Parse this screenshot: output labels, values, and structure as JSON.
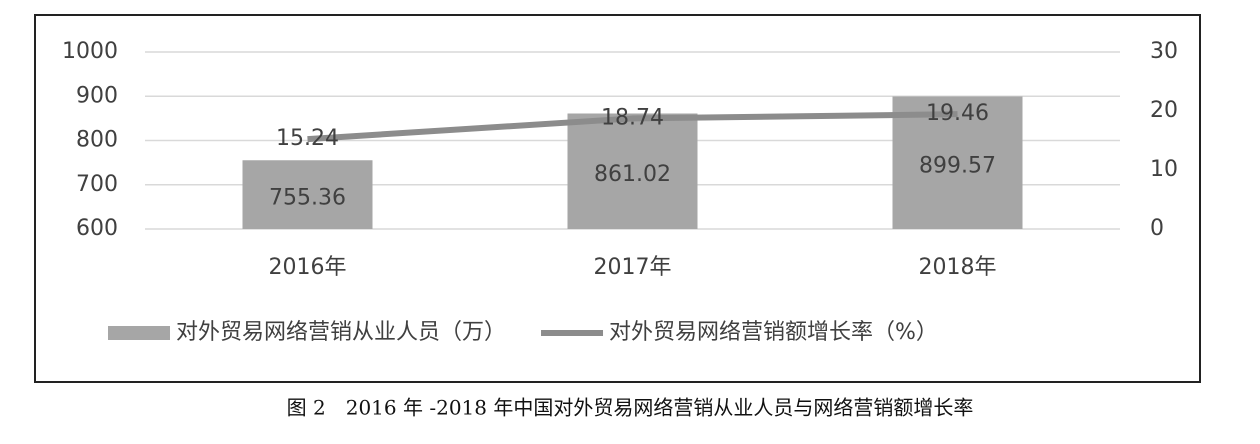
{
  "chart_data": {
    "type": "bar",
    "caption": "图 2　2016 年 -2018 年中国对外贸易网络营销从业人员与网络营销额增长率",
    "categories": [
      "2016年",
      "2017年",
      "2018年"
    ],
    "series": [
      {
        "name": "对外贸易网络营销从业人员（万）",
        "type": "bar",
        "color": "#a6a6a6",
        "values": [
          755.36,
          861.02,
          899.57
        ]
      },
      {
        "name": "对外贸易网络营销额增长率（%）",
        "type": "line",
        "axis": "y2",
        "color": "#8c8c8c",
        "values": [
          15.24,
          18.74,
          19.46
        ]
      }
    ],
    "ylim": [
      600,
      1000
    ],
    "yticks": [
      600,
      700,
      800,
      900,
      1000
    ],
    "y2lim": [
      0,
      30
    ],
    "y2ticks": [
      0,
      10,
      20,
      30
    ],
    "grid": true,
    "legend": "bottom"
  }
}
